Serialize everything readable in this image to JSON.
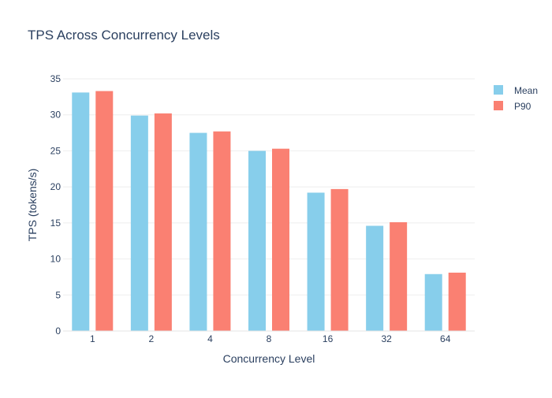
{
  "chart_data": {
    "type": "bar",
    "title": "TPS Across Concurrency Levels",
    "xlabel": "Concurrency Level",
    "ylabel": "TPS (tokens/s)",
    "categories": [
      "1",
      "2",
      "4",
      "8",
      "16",
      "32",
      "64"
    ],
    "series": [
      {
        "name": "Mean",
        "color": "#87CEEB",
        "values": [
          33.1,
          29.9,
          27.5,
          25.0,
          19.2,
          14.6,
          7.9
        ]
      },
      {
        "name": "P90",
        "color": "#FA8072",
        "values": [
          33.3,
          30.2,
          27.7,
          25.3,
          19.7,
          15.1,
          8.1
        ]
      }
    ],
    "ylim": [
      0,
      35
    ],
    "yticks": [
      0,
      5,
      10,
      15,
      20,
      25,
      30,
      35
    ],
    "grid": true,
    "legend_position": "top-right"
  }
}
